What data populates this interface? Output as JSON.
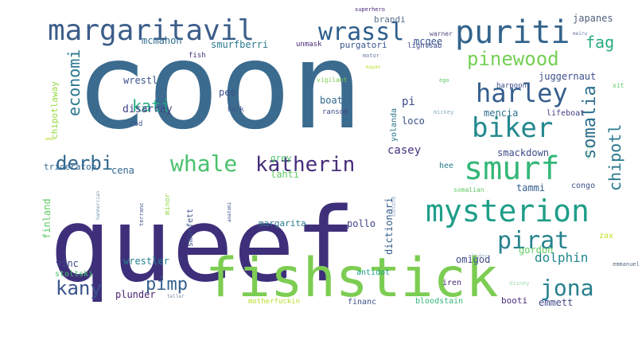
{
  "words": [
    {
      "text": "coon",
      "color": "#3b6b8e"
    },
    {
      "text": "queef",
      "color": "#3e2f7a"
    },
    {
      "text": "fishstick",
      "color": "#7ccd52"
    },
    {
      "text": "mysterion",
      "color": "#1f9e89"
    },
    {
      "text": "smurf",
      "color": "#35b779"
    },
    {
      "text": "puriti",
      "color": "#33648c"
    },
    {
      "text": "margaritavil",
      "color": "#3b5d8a"
    },
    {
      "text": "biker",
      "color": "#23898e"
    },
    {
      "text": "harley",
      "color": "#365d8d"
    },
    {
      "text": "wrassl",
      "color": "#2d5e8c"
    },
    {
      "text": "katherin",
      "color": "#472d7b"
    },
    {
      "text": "whale",
      "color": "#4ac16d"
    },
    {
      "text": "pirat",
      "color": "#26828e"
    },
    {
      "text": "jona",
      "color": "#277f8e"
    },
    {
      "text": "pinewood",
      "color": "#75d054"
    },
    {
      "text": "somalia",
      "color": "#2e6f8e"
    },
    {
      "text": "derbi",
      "color": "#31688e"
    },
    {
      "text": "kany",
      "color": "#3a538b"
    },
    {
      "text": "pimp",
      "color": "#355f8d"
    },
    {
      "text": "economi",
      "color": "#2a788e"
    },
    {
      "text": "fag",
      "color": "#27ad81"
    },
    {
      "text": "kati",
      "color": "#22a884"
    },
    {
      "text": "chipotl",
      "color": "#29788e"
    },
    {
      "text": "dolphin",
      "color": "#23888e"
    },
    {
      "text": "juggernaut",
      "color": "#3d4e8a"
    },
    {
      "text": "mcmahon",
      "color": "#2f6b8e"
    },
    {
      "text": "smurfberri",
      "color": "#2a788e"
    },
    {
      "text": "purgatori",
      "color": "#39568c"
    },
    {
      "text": "mcgee",
      "color": "#39558c"
    },
    {
      "text": "japanes",
      "color": "#52607a"
    },
    {
      "text": "brandi",
      "color": "#58708c"
    },
    {
      "text": "wrestl",
      "color": "#3b528b"
    },
    {
      "text": "pee",
      "color": "#3b528b"
    },
    {
      "text": "boat",
      "color": "#30698e"
    },
    {
      "text": "pi",
      "color": "#3e4989"
    },
    {
      "text": "disarray",
      "color": "#424086"
    },
    {
      "text": "mencia",
      "color": "#2c718e"
    },
    {
      "text": "lifeboat",
      "color": "#433e85"
    },
    {
      "text": "loco",
      "color": "#3c4f8a"
    },
    {
      "text": "casey",
      "color": "#46327e"
    },
    {
      "text": "smackdown",
      "color": "#3e4c8a"
    },
    {
      "text": "cena",
      "color": "#31688e"
    },
    {
      "text": "lahti",
      "color": "#5ec962"
    },
    {
      "text": "hee",
      "color": "#287d8e"
    },
    {
      "text": "tammi",
      "color": "#355e8d"
    },
    {
      "text": "congo",
      "color": "#3c4f8a"
    },
    {
      "text": "finland",
      "color": "#5ec962"
    },
    {
      "text": "minor",
      "color": "#8fd744"
    },
    {
      "text": "smurfett",
      "color": "#3b528b"
    },
    {
      "text": "margarita",
      "color": "#2a788e"
    },
    {
      "text": "pollo",
      "color": "#414487"
    },
    {
      "text": "dictionari",
      "color": "#355e8d"
    },
    {
      "text": "omigod",
      "color": "#3e4a89"
    },
    {
      "text": "zax",
      "color": "#c2df23"
    },
    {
      "text": "gordon",
      "color": "#5ec962"
    },
    {
      "text": "antidot",
      "color": "#1fa187"
    },
    {
      "text": "iren",
      "color": "#472d7b"
    },
    {
      "text": "vinc",
      "color": "#3e4989"
    },
    {
      "text": "wrestler",
      "color": "#26818e"
    },
    {
      "text": "plunder",
      "color": "#482173"
    },
    {
      "text": "stoltski",
      "color": "#48c16e"
    },
    {
      "text": "motherfuckin",
      "color": "#b8de29"
    },
    {
      "text": "financ",
      "color": "#3d4e8a"
    },
    {
      "text": "bloodstain",
      "color": "#35b779"
    },
    {
      "text": "booti",
      "color": "#472d7b"
    },
    {
      "text": "emmett",
      "color": "#3e4989"
    },
    {
      "text": "triceratop",
      "color": "#31688e"
    },
    {
      "text": "chipotlaway",
      "color": "#95d840"
    },
    {
      "text": "grey",
      "color": "#4ac16d"
    },
    {
      "text": "rad",
      "color": "#3b528b"
    },
    {
      "text": "fark",
      "color": "#3b528b"
    },
    {
      "text": "ransom",
      "color": "#3e4989"
    },
    {
      "text": "yolanda",
      "color": "#2a788e"
    },
    {
      "text": "harpoon",
      "color": "#3e4c8a"
    },
    {
      "text": "fish",
      "color": "#472d7b"
    },
    {
      "text": "unmask",
      "color": "#482878"
    },
    {
      "text": "lightsab",
      "color": "#3e4989"
    },
    {
      "text": "superhero",
      "color": "#482878"
    },
    {
      "text": "warner",
      "color": "#4f4a7a"
    },
    {
      "text": "meiru",
      "color": "#6a7aa0"
    },
    {
      "text": "motor",
      "color": "#6a7aa0"
    },
    {
      "text": "mayan",
      "color": "#b5de2b"
    },
    {
      "text": "vigilant",
      "color": "#7ccd52"
    },
    {
      "text": "ego",
      "color": "#5ec962"
    },
    {
      "text": "xit",
      "color": "#5ec962"
    },
    {
      "text": "chris",
      "color": "#a0dab0"
    },
    {
      "text": "mickey",
      "color": "#8ab0c0"
    },
    {
      "text": "somalian",
      "color": "#5ec962"
    },
    {
      "text": "terranc",
      "color": "#3b528b"
    },
    {
      "text": "hammercian",
      "color": "#7a9ab0"
    },
    {
      "text": "anatomi",
      "color": "#3b528b"
    },
    {
      "text": "banana",
      "color": "#a0b4c8"
    },
    {
      "text": "slider",
      "color": "#a0b4c8"
    },
    {
      "text": "disney",
      "color": "#a0dab0"
    },
    {
      "text": "emmanuel",
      "color": "#5a6a80"
    },
    {
      "text": "teller",
      "color": "#7a8a9a"
    },
    {
      "text": "www",
      "color": "#b5de2b"
    }
  ]
}
